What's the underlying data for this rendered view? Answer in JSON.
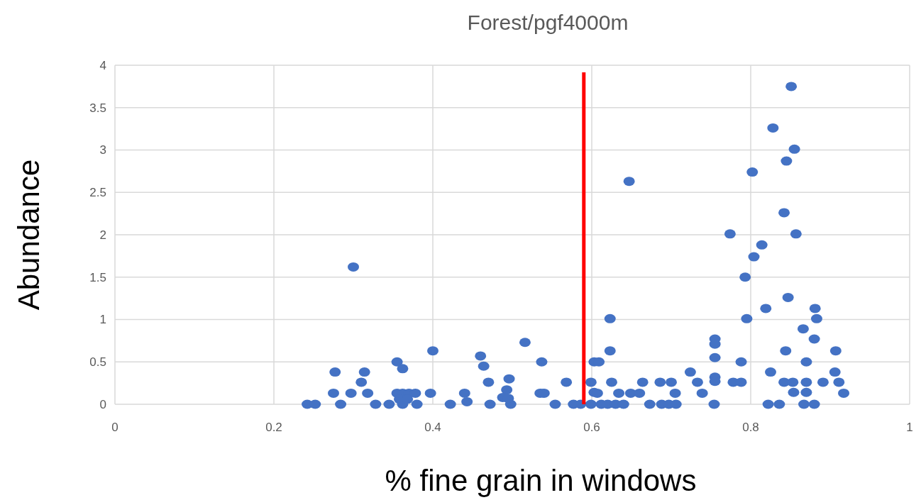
{
  "chart_data": {
    "type": "scatter",
    "title": "Forest/pgf4000m",
    "xlabel": "% fine grain in windows",
    "ylabel": "Abundance",
    "xlim": [
      0,
      1
    ],
    "xticks": [
      0,
      0.2,
      0.4,
      0.6,
      0.8,
      1
    ],
    "ylim": [
      0,
      4
    ],
    "yticks": [
      0,
      0.5,
      1,
      1.5,
      2,
      2.5,
      3,
      3.5,
      4
    ],
    "grid": true,
    "marker": "circle",
    "ref_lines": [
      {
        "axis": "x",
        "value": 0.59,
        "color": "#ff0000"
      }
    ],
    "series": [
      {
        "color": "#4472c4",
        "x": [
          0.242,
          0.252,
          0.277,
          0.275,
          0.284,
          0.297,
          0.3,
          0.31,
          0.314,
          0.318,
          0.328,
          0.355,
          0.362,
          0.345,
          0.362,
          0.38,
          0.355,
          0.362,
          0.37,
          0.378,
          0.358,
          0.368,
          0.4,
          0.397,
          0.422,
          0.44,
          0.443,
          0.46,
          0.464,
          0.47,
          0.472,
          0.496,
          0.493,
          0.488,
          0.498,
          0.495,
          0.516,
          0.537,
          0.535,
          0.54,
          0.554,
          0.568,
          0.577,
          0.586,
          0.603,
          0.599,
          0.603,
          0.599,
          0.609,
          0.607,
          0.612,
          0.62,
          0.63,
          0.64,
          0.623,
          0.623,
          0.625,
          0.634,
          0.649,
          0.66,
          0.664,
          0.673,
          0.686,
          0.7,
          0.688,
          0.697,
          0.706,
          0.705,
          0.724,
          0.733,
          0.739,
          0.755,
          0.755,
          0.755,
          0.755,
          0.755,
          0.754,
          0.778,
          0.788,
          0.788,
          0.795,
          0.793,
          0.804,
          0.814,
          0.819,
          0.825,
          0.822,
          0.836,
          0.847,
          0.844,
          0.842,
          0.853,
          0.87,
          0.854,
          0.87,
          0.867,
          0.88,
          0.87,
          0.881,
          0.883,
          0.866,
          0.88,
          0.891,
          0.907,
          0.906,
          0.911,
          0.917,
          0.851,
          0.828,
          0.855,
          0.845,
          0.802,
          0.647,
          0.842,
          0.774,
          0.857
        ],
        "values": [
          0,
          0,
          0.38,
          0.13,
          0,
          0.13,
          1.62,
          0.26,
          0.38,
          0.13,
          0,
          0.5,
          0.42,
          0,
          0,
          0,
          0.13,
          0.13,
          0.13,
          0.13,
          0.06,
          0.06,
          0.63,
          0.13,
          0,
          0.13,
          0.03,
          0.57,
          0.45,
          0.26,
          0,
          0.3,
          0.17,
          0.08,
          0,
          0.07,
          0.73,
          0.5,
          0.13,
          0.13,
          0,
          0.26,
          0,
          0,
          0.5,
          0.26,
          0.14,
          0,
          0.5,
          0.13,
          0,
          0,
          0,
          0,
          1.01,
          0.63,
          0.26,
          0.13,
          0.13,
          0.13,
          0.26,
          0,
          0.26,
          0.26,
          0,
          0,
          0,
          0.13,
          0.38,
          0.26,
          0.13,
          0.77,
          0.71,
          0.55,
          0.32,
          0.27,
          0,
          0.26,
          0.26,
          0.5,
          1.01,
          1.5,
          1.74,
          1.88,
          1.13,
          0.38,
          0,
          0,
          1.26,
          0.63,
          0.26,
          0.26,
          0.26,
          0.14,
          0.14,
          0,
          0,
          0.5,
          1.13,
          1.01,
          0.89,
          0.77,
          0.26,
          0.63,
          0.38,
          0.26,
          0.13,
          3.75,
          3.26,
          3.01,
          2.87,
          2.74,
          2.63,
          2.26,
          2.01,
          2.01
        ]
      }
    ]
  }
}
